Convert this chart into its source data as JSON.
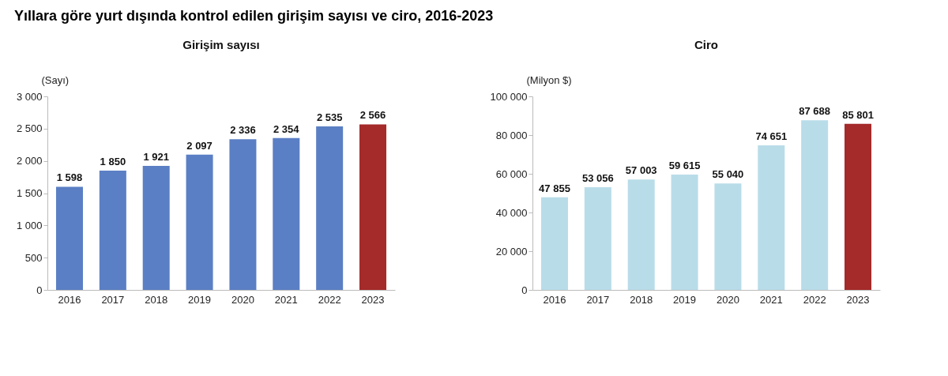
{
  "chart_data": [
    {
      "type": "bar",
      "title": "Yıllara göre yurt dışında kontrol edilen girişim sayısı ve ciro, 2016-2023",
      "subtitle": "Girişim sayısı",
      "ylabel": "(Sayı)",
      "categories": [
        "2016",
        "2017",
        "2018",
        "2019",
        "2020",
        "2021",
        "2022",
        "2023"
      ],
      "values": [
        1598,
        1850,
        1921,
        2097,
        2336,
        2354,
        2535,
        2566
      ],
      "colors": [
        "#5b7fc4",
        "#5b7fc4",
        "#5b7fc4",
        "#5b7fc4",
        "#5b7fc4",
        "#5b7fc4",
        "#5b7fc4",
        "#a52a2a"
      ],
      "value_labels": [
        "1 598",
        "1 850",
        "1 921",
        "2 097",
        "2 336",
        "2 354",
        "2 535",
        "2 566"
      ],
      "ylim": [
        0,
        3000
      ],
      "yticks": [
        {
          "value": 0,
          "label": "0"
        },
        {
          "value": 500,
          "label": "500"
        },
        {
          "value": 1000,
          "label": "1 000"
        },
        {
          "value": 1500,
          "label": "1 500"
        },
        {
          "value": 2000,
          "label": "2 000"
        },
        {
          "value": 2500,
          "label": "2 500"
        },
        {
          "value": 3000,
          "label": "3 000"
        }
      ]
    },
    {
      "type": "bar",
      "title": "Ciro",
      "ylabel": "(Milyon $)",
      "categories": [
        "2016",
        "2017",
        "2018",
        "2019",
        "2020",
        "2021",
        "2022",
        "2023"
      ],
      "values": [
        47855,
        53056,
        57003,
        59615,
        55040,
        74651,
        87688,
        85801
      ],
      "colors": [
        "#b9dce9",
        "#b9dce9",
        "#b9dce9",
        "#b9dce9",
        "#b9dce9",
        "#b9dce9",
        "#b9dce9",
        "#a52a2a"
      ],
      "value_labels": [
        "47 855",
        "53 056",
        "57 003",
        "59 615",
        "55 040",
        "74 651",
        "87 688",
        "85 801"
      ],
      "ylim": [
        0,
        100000
      ],
      "yticks": [
        {
          "value": 0,
          "label": "0"
        },
        {
          "value": 20000,
          "label": "20 000"
        },
        {
          "value": 40000,
          "label": "40 000"
        },
        {
          "value": 60000,
          "label": "60 000"
        },
        {
          "value": 80000,
          "label": "80 000"
        },
        {
          "value": 100000,
          "label": "100 000"
        }
      ]
    }
  ]
}
